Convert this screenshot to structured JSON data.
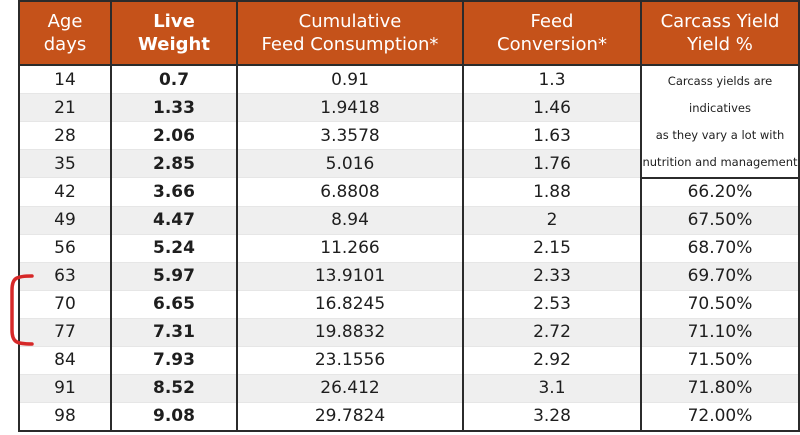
{
  "headers": [
    [
      "Age",
      "days"
    ],
    [
      "Live",
      "Weight"
    ],
    [
      "Cumulative",
      "Feed Consumption*"
    ],
    [
      "Feed",
      "Conversion*"
    ],
    [
      "Carcass Yield",
      "Yield %"
    ]
  ],
  "note_lines": [
    "Carcass yields are indicatives",
    "as they vary a lot with",
    "nutrition and management"
  ],
  "rows": [
    {
      "age": "14",
      "weight": "0.7",
      "feed": "0.91",
      "conversion": "1.3",
      "yield": ""
    },
    {
      "age": "21",
      "weight": "1.33",
      "feed": "1.9418",
      "conversion": "1.46",
      "yield": ""
    },
    {
      "age": "28",
      "weight": "2.06",
      "feed": "3.3578",
      "conversion": "1.63",
      "yield": ""
    },
    {
      "age": "35",
      "weight": "2.85",
      "feed": "5.016",
      "conversion": "1.76",
      "yield": ""
    },
    {
      "age": "42",
      "weight": "3.66",
      "feed": "6.8808",
      "conversion": "1.88",
      "yield": "66.20%"
    },
    {
      "age": "49",
      "weight": "4.47",
      "feed": "8.94",
      "conversion": "2",
      "yield": "67.50%"
    },
    {
      "age": "56",
      "weight": "5.24",
      "feed": "11.266",
      "conversion": "2.15",
      "yield": "68.70%"
    },
    {
      "age": "63",
      "weight": "5.97",
      "feed": "13.9101",
      "conversion": "2.33",
      "yield": "69.70%"
    },
    {
      "age": "70",
      "weight": "6.65",
      "feed": "16.8245",
      "conversion": "2.53",
      "yield": "70.50%"
    },
    {
      "age": "77",
      "weight": "7.31",
      "feed": "19.8832",
      "conversion": "2.72",
      "yield": "71.10%"
    },
    {
      "age": "84",
      "weight": "7.93",
      "feed": "23.1556",
      "conversion": "2.92",
      "yield": "71.50%"
    },
    {
      "age": "91",
      "weight": "8.52",
      "feed": "26.412",
      "conversion": "3.1",
      "yield": "71.80%"
    },
    {
      "age": "98",
      "weight": "9.08",
      "feed": "29.7824",
      "conversion": "3.28",
      "yield": "72.00%"
    }
  ],
  "colors": {
    "header_bg": "#c5521a",
    "header_text": "#ffffff",
    "stripe": "#efefef",
    "annotation": "#d62828"
  },
  "annotation": {
    "icon": "red-bracket-icon",
    "rows_marked": [
      "63",
      "70",
      "77"
    ]
  }
}
